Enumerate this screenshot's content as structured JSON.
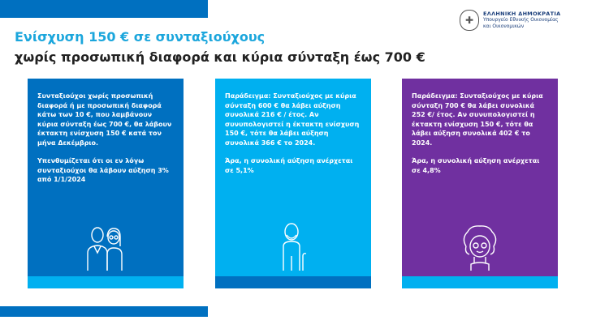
{
  "header": {
    "title": "Ενίσχυση 150 € σε συνταξιούχους",
    "subtitle": "χωρίς προσωπική διαφορά και κύρια σύνταξη έως 700 €"
  },
  "logo": {
    "line1": "ΕΛΛΗΝΙΚΗ ΔΗΜΟΚΡΑΤΙΑ",
    "line2": "Υπουργείο Εθνικής Οικονομίας",
    "line3": "και Οικονομικών"
  },
  "colors": {
    "dark_blue": "#0070c0",
    "light_blue": "#00b0f0",
    "purple": "#7030a0",
    "title_cyan": "#1ba6dc"
  },
  "cards": [
    {
      "paragraphs": [
        "Συνταξιούχοι χωρίς προσωπική διαφορά ή με προσωπική διαφορά κάτω των 10 €, που λαμβάνουν κύρια σύνταξη έως 700 €, θα λάβουν έκτακτη ενίσχυση 150 € κατά τον μήνα Δεκέμβριο.",
        "Υπενθυμίζεται ότι οι εν λόγω συνταξιούχοι θα λάβουν αύξηση 3% από 1/1/2024"
      ],
      "icon": "elderly-couple-icon"
    },
    {
      "paragraphs": [
        "Παράδειγμα: Συνταξιούχος με κύρια σύνταξη 600 € θα λάβει αύξηση συνολικά 216 € / έτος. Αν συνυπολογιστεί η έκτακτη ενίσχυση 150 €, τότε θα λάβει αύξηση συνολικά 366 € το 2024.",
        "Άρα, η συνολική αύξηση ανέρχεται σε 5,1%"
      ],
      "icon": "elderly-man-cane-icon"
    },
    {
      "paragraphs": [
        "Παράδειγμα: Συνταξιούχος με κύρια σύνταξη 700 € θα λάβει συνολικά 252 €/ έτος. Αν συνυπολογιστεί η έκτακτη ενίσχυση 150 €, τότε θα λάβει αύξηση συνολικά 402 € το 2024.",
        "Άρα, η συνολική αύξηση ανέρχεται σε 4,8%"
      ],
      "icon": "elderly-woman-icon"
    }
  ]
}
